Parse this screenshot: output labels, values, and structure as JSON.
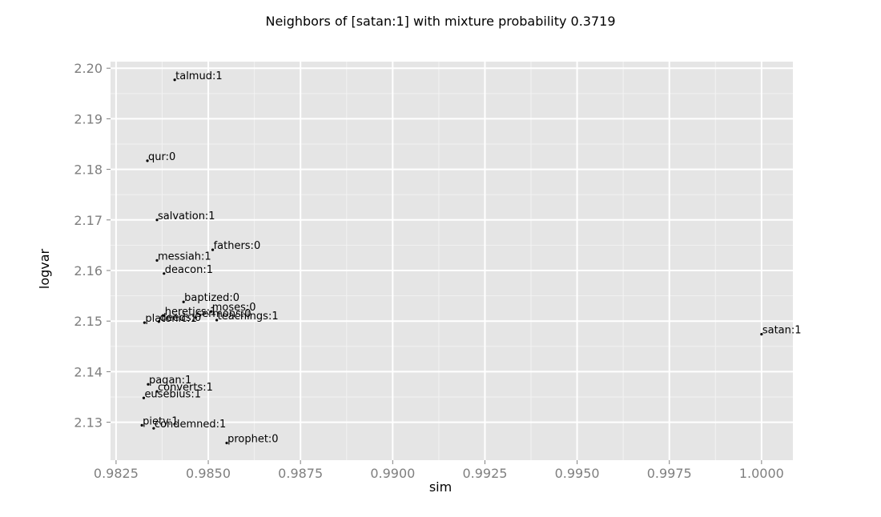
{
  "chart_data": {
    "type": "scatter",
    "title": "Neighbors of [satan:1] with mixture probability 0.3719",
    "xlabel": "sim",
    "ylabel": "logvar",
    "xlim": [
      0.98235,
      1.00085
    ],
    "ylim": [
      2.1225,
      2.2013
    ],
    "x_ticks": [
      0.9825,
      0.985,
      0.9875,
      0.99,
      0.9925,
      0.995,
      0.9975,
      1.0
    ],
    "x_tick_labels": [
      "0.9825",
      "0.9850",
      "0.9875",
      "0.9900",
      "0.9925",
      "0.9950",
      "0.9975",
      "1.0000"
    ],
    "y_ticks": [
      2.13,
      2.14,
      2.15,
      2.16,
      2.17,
      2.18,
      2.19,
      2.2
    ],
    "y_tick_labels": [
      "2.13",
      "2.14",
      "2.15",
      "2.16",
      "2.17",
      "2.18",
      "2.19",
      "2.20"
    ],
    "grid": true,
    "points": [
      {
        "label": "talmud:1",
        "x": 0.98409,
        "y": 2.1977
      },
      {
        "label": "qur:0",
        "x": 0.98335,
        "y": 2.1817
      },
      {
        "label": "salvation:1",
        "x": 0.98361,
        "y": 2.17
      },
      {
        "label": "fathers:0",
        "x": 0.98512,
        "y": 2.1641
      },
      {
        "label": "messiah:1",
        "x": 0.98361,
        "y": 2.162
      },
      {
        "label": "deacon:1",
        "x": 0.9838,
        "y": 2.1594
      },
      {
        "label": "baptized:0",
        "x": 0.98433,
        "y": 2.1538
      },
      {
        "label": "heretics:1",
        "x": 0.9838,
        "y": 2.1511
      },
      {
        "label": "moses:0",
        "x": 0.98508,
        "y": 2.1519
      },
      {
        "label": "sermons:0",
        "x": 0.98466,
        "y": 2.1507
      },
      {
        "label": "deeds:0",
        "x": 0.98366,
        "y": 2.1499
      },
      {
        "label": "platonic:1",
        "x": 0.98327,
        "y": 2.1497
      },
      {
        "label": "teachings:1",
        "x": 0.98523,
        "y": 2.1502
      },
      {
        "label": "satan:1",
        "x": 1.0,
        "y": 2.1474
      },
      {
        "label": "pagan:1",
        "x": 0.98337,
        "y": 2.1375
      },
      {
        "label": "converts:1",
        "x": 0.98361,
        "y": 2.1361
      },
      {
        "label": "eusebius:1",
        "x": 0.98325,
        "y": 2.1348
      },
      {
        "label": "piety:1",
        "x": 0.9832,
        "y": 2.1294
      },
      {
        "label": "condemned:1",
        "x": 0.98352,
        "y": 2.1288
      },
      {
        "label": "prophet:0",
        "x": 0.9855,
        "y": 2.1259
      }
    ]
  },
  "colors": {
    "panel": "#e5e5e5",
    "grid_major": "#ffffff",
    "grid_minor": "#f2f2f2",
    "point": "#000000",
    "tick_text": "#7f7f7f"
  }
}
